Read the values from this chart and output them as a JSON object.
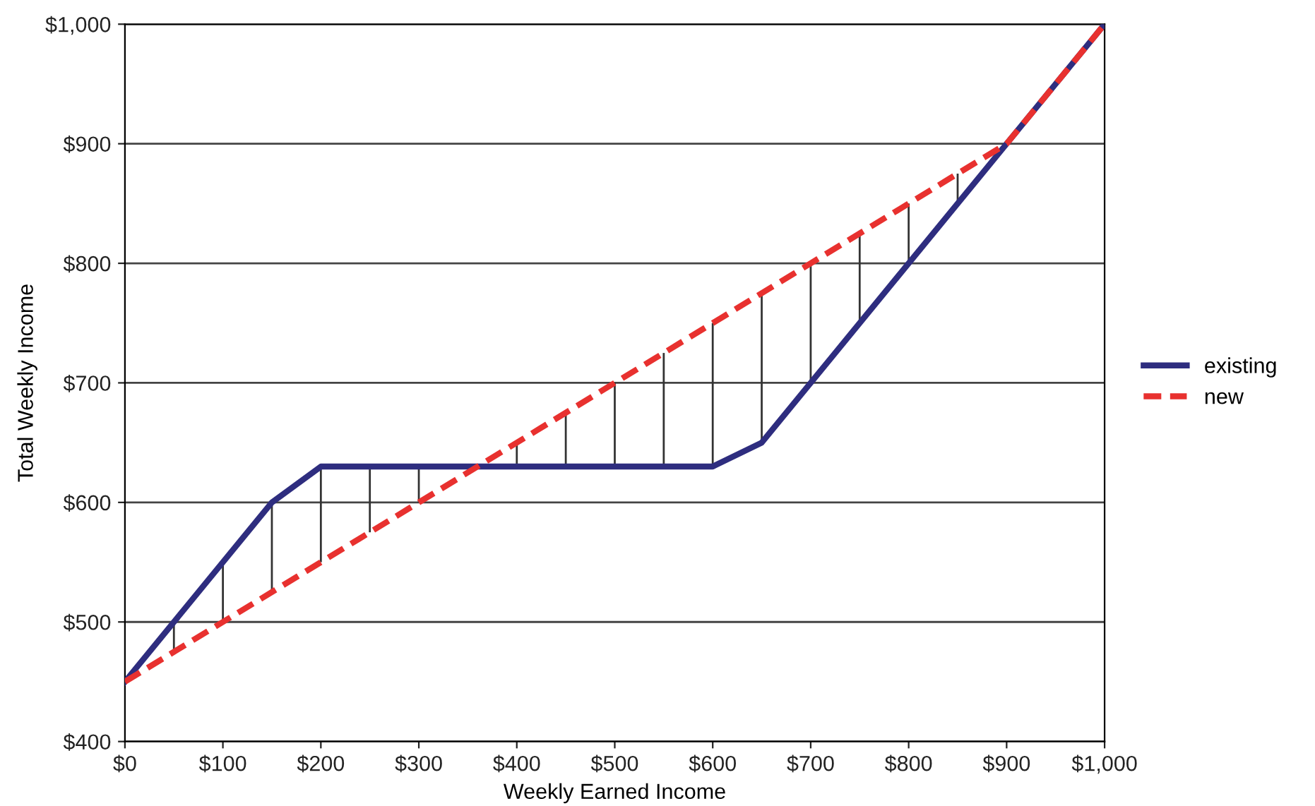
{
  "chart_data": {
    "type": "line",
    "xlabel": "Weekly Earned Income",
    "ylabel": "Total Weekly Income",
    "xlim": [
      0,
      1000
    ],
    "ylim": [
      400,
      1000
    ],
    "xticks": [
      {
        "value": 0,
        "label": "$0"
      },
      {
        "value": 100,
        "label": "$100"
      },
      {
        "value": 200,
        "label": "$200"
      },
      {
        "value": 300,
        "label": "$300"
      },
      {
        "value": 400,
        "label": "$400"
      },
      {
        "value": 500,
        "label": "$500"
      },
      {
        "value": 600,
        "label": "$600"
      },
      {
        "value": 700,
        "label": "$700"
      },
      {
        "value": 800,
        "label": "$800"
      },
      {
        "value": 900,
        "label": "$900"
      },
      {
        "value": 1000,
        "label": "$1,000"
      }
    ],
    "yticks": [
      {
        "value": 400,
        "label": "$400"
      },
      {
        "value": 500,
        "label": "$500"
      },
      {
        "value": 600,
        "label": "$600"
      },
      {
        "value": 700,
        "label": "$700"
      },
      {
        "value": 800,
        "label": "$800"
      },
      {
        "value": 900,
        "label": "$900"
      },
      {
        "value": 1000,
        "label": "$1,000"
      }
    ],
    "grid": "y",
    "legend": "right",
    "series": [
      {
        "type": "bar",
        "color": "#333333",
        "x": [
          50,
          100,
          150,
          200,
          250,
          300,
          400,
          450,
          500,
          550,
          600,
          650,
          700,
          750,
          800,
          850
        ],
        "base": [
          475,
          500,
          525,
          550,
          575,
          600,
          630,
          630,
          630,
          630,
          630,
          650,
          700,
          750,
          800,
          850
        ],
        "values": [
          25,
          50,
          75,
          80,
          55,
          30,
          20,
          45,
          70,
          95,
          120,
          125,
          100,
          75,
          50,
          25
        ]
      },
      {
        "name": "existing",
        "color": "#2e2d7f",
        "line_style": "solid",
        "x": [
          0,
          150,
          200,
          600,
          650,
          1000
        ],
        "values": [
          450,
          600,
          630,
          630,
          650,
          1000
        ]
      },
      {
        "name": "new",
        "color": "#e8312f",
        "line_style": "dashed",
        "x": [
          0,
          900,
          1000
        ],
        "values": [
          450,
          900,
          1000
        ]
      }
    ]
  }
}
